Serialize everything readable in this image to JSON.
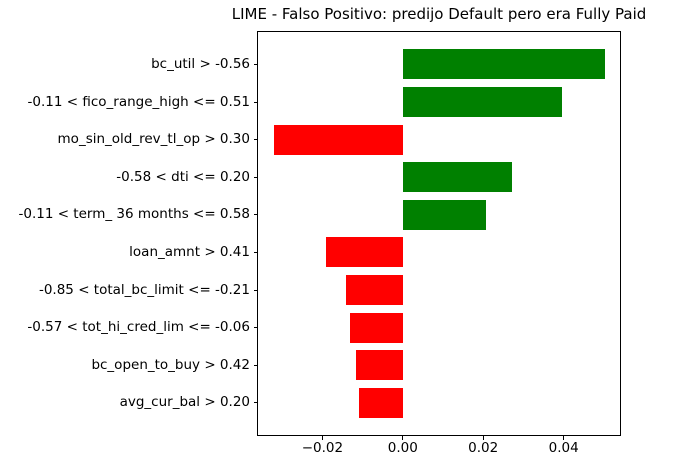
{
  "chart_data": {
    "type": "bar",
    "orientation": "horizontal",
    "title": "LIME - Falso Positivo: predijo Default pero era Fully Paid",
    "categories": [
      "bc_util > -0.56",
      "-0.11 < fico_range_high <= 0.51",
      "mo_sin_old_rev_tl_op > 0.30",
      "-0.58 < dti <= 0.20",
      "-0.11 < term_ 36 months <= 0.58",
      "loan_amnt > 0.41",
      "-0.85 < total_bc_limit <= -0.21",
      "-0.57 < tot_hi_cred_lim <= -0.06",
      "bc_open_to_buy > 0.42",
      "avg_cur_bal > 0.20"
    ],
    "values": [
      0.0503,
      0.0395,
      -0.032,
      0.0271,
      0.0207,
      -0.0191,
      -0.0141,
      -0.0131,
      -0.0116,
      -0.0109
    ],
    "xlabel": "",
    "ylabel": "",
    "xlim": [
      -0.036,
      0.054
    ],
    "xticks": {
      "values": [
        -0.02,
        0.0,
        0.02,
        0.04
      ],
      "labels": [
        "−0.02",
        "0.00",
        "0.02",
        "0.04"
      ]
    },
    "positive_color": "#008000",
    "negative_color": "#ff0000",
    "grid": false,
    "legend": "none"
  }
}
